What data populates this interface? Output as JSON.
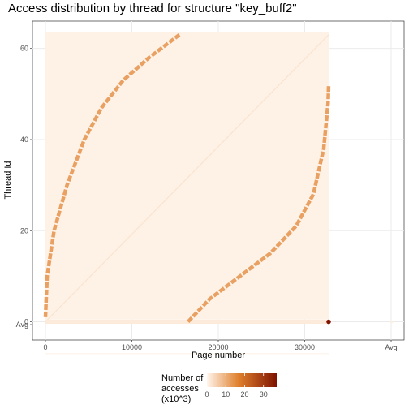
{
  "chart_data": {
    "type": "heatmap",
    "title": "Access distribution by thread for structure \"key_buff2\"",
    "xlabel": "Page number",
    "ylabel": "Thread Id",
    "x_ticks": [
      0,
      10000,
      20000,
      30000
    ],
    "x_tick_labels": [
      "0",
      "10000",
      "20000",
      "30000"
    ],
    "x_extra_label": "Avg",
    "y_ticks": [
      0,
      20,
      40,
      60
    ],
    "y_tick_labels": [
      "0",
      "20",
      "40",
      "60"
    ],
    "y_extra_label": "Avg",
    "xlim": [
      -1500,
      41500
    ],
    "ylim": [
      -4,
      66
    ],
    "page_max": 32768,
    "threads": 64,
    "grid": true,
    "legend": {
      "title_lines": [
        "Number of",
        "accesses",
        "(x10^3)"
      ],
      "ticks": [
        0,
        10,
        20,
        30
      ],
      "tick_labels": [
        "0",
        "10",
        "20",
        "30"
      ],
      "range": [
        0,
        37
      ],
      "placement": "bottom"
    },
    "colors": {
      "low": "#fff5eb",
      "mid": "#e0802e",
      "high": "#7f1300",
      "panel_bg": "#ffffff",
      "grid": "#ebebeb"
    },
    "series": [
      {
        "description": "Thread 0 row",
        "thread": 0,
        "x_range": [
          0,
          32768
        ],
        "value": 1.5
      },
      {
        "description": "Thread 0 hotspot",
        "thread": 0,
        "x": 32768,
        "value": 37
      },
      {
        "description": "Upper-left diagonal band",
        "points": [
          [
            0,
            1
          ],
          [
            200,
            10
          ],
          [
            1000,
            20
          ],
          [
            2500,
            30
          ],
          [
            4500,
            40
          ],
          [
            6500,
            47
          ],
          [
            9000,
            53
          ],
          [
            12000,
            58
          ],
          [
            15500,
            63
          ]
        ],
        "value": 12
      },
      {
        "description": "Lower-right diagonal band",
        "points": [
          [
            16500,
            0
          ],
          [
            19000,
            5
          ],
          [
            22500,
            10
          ],
          [
            26000,
            15
          ],
          [
            29000,
            21
          ],
          [
            31000,
            28
          ],
          [
            32200,
            38
          ],
          [
            32700,
            48
          ],
          [
            32768,
            52
          ]
        ],
        "value": 12
      }
    ]
  }
}
